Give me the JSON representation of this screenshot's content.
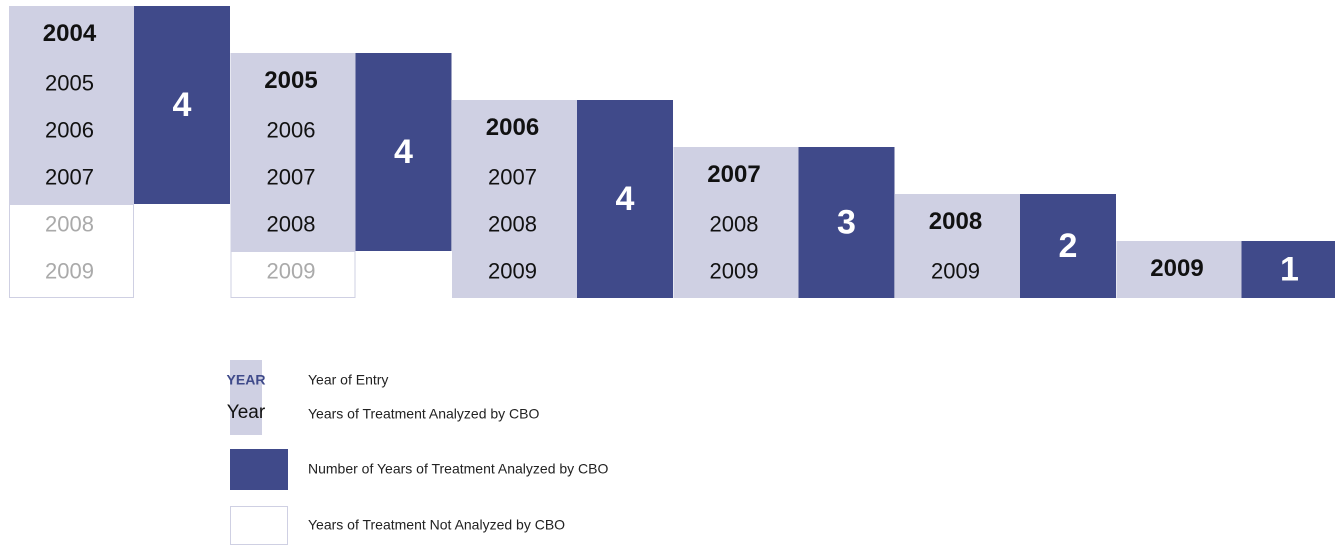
{
  "cohorts": [
    {
      "entry": "2004",
      "analyzed": [
        "2005",
        "2006",
        "2007"
      ],
      "not_analyzed": [
        "2008",
        "2009"
      ],
      "count": 4
    },
    {
      "entry": "2005",
      "analyzed": [
        "2006",
        "2007",
        "2008"
      ],
      "not_analyzed": [
        "2009"
      ],
      "count": 4
    },
    {
      "entry": "2006",
      "analyzed": [
        "2007",
        "2008",
        "2009"
      ],
      "not_analyzed": [],
      "count": 4
    },
    {
      "entry": "2007",
      "analyzed": [
        "2008",
        "2009"
      ],
      "not_analyzed": [],
      "count": 3
    },
    {
      "entry": "2008",
      "analyzed": [
        "2009"
      ],
      "not_analyzed": [],
      "count": 2
    },
    {
      "entry": "2009",
      "analyzed": [],
      "not_analyzed": [],
      "count": 1
    }
  ],
  "legend": {
    "entry_sample": "YEAR",
    "entry_label": "Year of Entry",
    "analyzed_sample": "Year",
    "analyzed_label": "Years of Treatment Analyzed by CBO",
    "count_label": "Number of Years of Treatment Analyzed by CBO",
    "not_analyzed_label": "Years of Treatment Not Analyzed by CBO"
  }
}
